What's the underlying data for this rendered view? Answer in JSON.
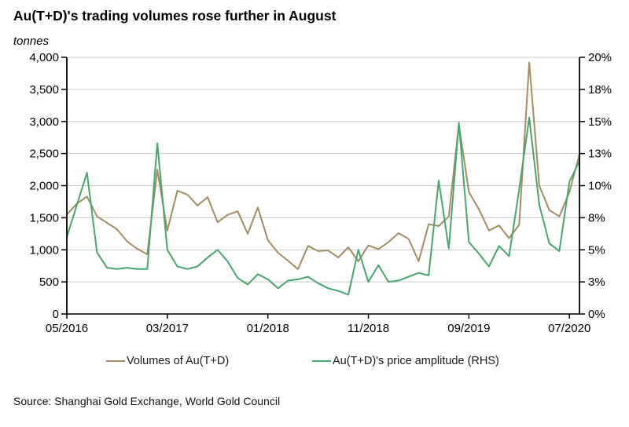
{
  "header": {
    "title": "Au(T+D)'s trading volumes rose further in August",
    "unit_label": "tonnes"
  },
  "source": "Source: Shanghai Gold Exchange, World Gold Council",
  "legend": [
    {
      "label": "Volumes of Au(T+D)",
      "color": "#a18d5f"
    },
    {
      "label": "Au(T+D)'s price amplitude (RHS)",
      "color": "#47a66d"
    }
  ],
  "chart_data": {
    "type": "line",
    "title": "Au(T+D)'s trading volumes rose further in August",
    "x": [
      "05/2016",
      "06/2016",
      "07/2016",
      "08/2016",
      "09/2016",
      "10/2016",
      "11/2016",
      "12/2016",
      "01/2017",
      "02/2017",
      "03/2017",
      "04/2017",
      "05/2017",
      "06/2017",
      "07/2017",
      "08/2017",
      "09/2017",
      "10/2017",
      "11/2017",
      "12/2017",
      "01/2018",
      "02/2018",
      "03/2018",
      "04/2018",
      "05/2018",
      "06/2018",
      "07/2018",
      "08/2018",
      "09/2018",
      "10/2018",
      "11/2018",
      "12/2018",
      "01/2019",
      "02/2019",
      "03/2019",
      "04/2019",
      "05/2019",
      "06/2019",
      "07/2019",
      "08/2019",
      "09/2019",
      "10/2019",
      "11/2019",
      "12/2019",
      "01/2020",
      "02/2020",
      "03/2020",
      "04/2020",
      "05/2020",
      "06/2020",
      "07/2020",
      "08/2020"
    ],
    "series": [
      {
        "name": "Volumes of Au(T+D)",
        "axis": "left",
        "unit": "tonnes",
        "color": "#a18d5f",
        "values": [
          1550,
          1720,
          1830,
          1520,
          1420,
          1320,
          1130,
          1015,
          930,
          2250,
          1300,
          1920,
          1860,
          1690,
          1820,
          1430,
          1545,
          1600,
          1250,
          1660,
          1150,
          955,
          830,
          700,
          1060,
          980,
          990,
          880,
          1040,
          820,
          1070,
          1010,
          1120,
          1260,
          1170,
          820,
          1400,
          1370,
          1520,
          2950,
          1900,
          1630,
          1300,
          1380,
          1180,
          1390,
          3920,
          2000,
          1620,
          1520,
          1900,
          2490
        ]
      },
      {
        "name": "Au(T+D)'s price amplitude (RHS)",
        "axis": "right",
        "unit": "%",
        "color": "#47a66d",
        "values": [
          6.0,
          8.5,
          11.0,
          4.8,
          3.6,
          3.5,
          3.6,
          3.5,
          3.5,
          13.3,
          5.0,
          3.7,
          3.5,
          3.7,
          4.4,
          5.0,
          4.1,
          2.8,
          2.3,
          3.1,
          2.7,
          2.0,
          2.6,
          2.7,
          2.9,
          2.4,
          2.0,
          1.8,
          1.5,
          5.0,
          2.5,
          3.8,
          2.5,
          2.6,
          2.9,
          3.2,
          3.0,
          10.4,
          5.1,
          14.9,
          5.6,
          4.7,
          3.7,
          5.3,
          4.5,
          9.7,
          15.3,
          8.5,
          5.5,
          4.9,
          10.3,
          11.9
        ]
      }
    ],
    "left_axis": {
      "label": "tonnes",
      "min": 0,
      "max": 4000,
      "tick_values": [
        0,
        500,
        1000,
        1500,
        2000,
        2500,
        3000,
        3500,
        4000
      ],
      "tick_labels": [
        "0",
        "500",
        "1,000",
        "1,500",
        "2,000",
        "2,500",
        "3,000",
        "3,500",
        "4,000"
      ]
    },
    "right_axis": {
      "label": "price amplitude",
      "min": 0,
      "max": 20,
      "tick_values": [
        0,
        2.5,
        5,
        7.5,
        10,
        12.5,
        15,
        17.5,
        20
      ],
      "tick_labels": [
        "0%",
        "3%",
        "5%",
        "8%",
        "10%",
        "13%",
        "15%",
        "18%",
        "20%"
      ]
    },
    "x_ticks": {
      "indices": [
        0,
        10,
        20,
        30,
        40,
        50
      ],
      "labels": [
        "05/2016",
        "03/2017",
        "01/2018",
        "11/2018",
        "09/2019",
        "07/2020"
      ]
    },
    "grid": true,
    "legend_position": "bottom"
  }
}
